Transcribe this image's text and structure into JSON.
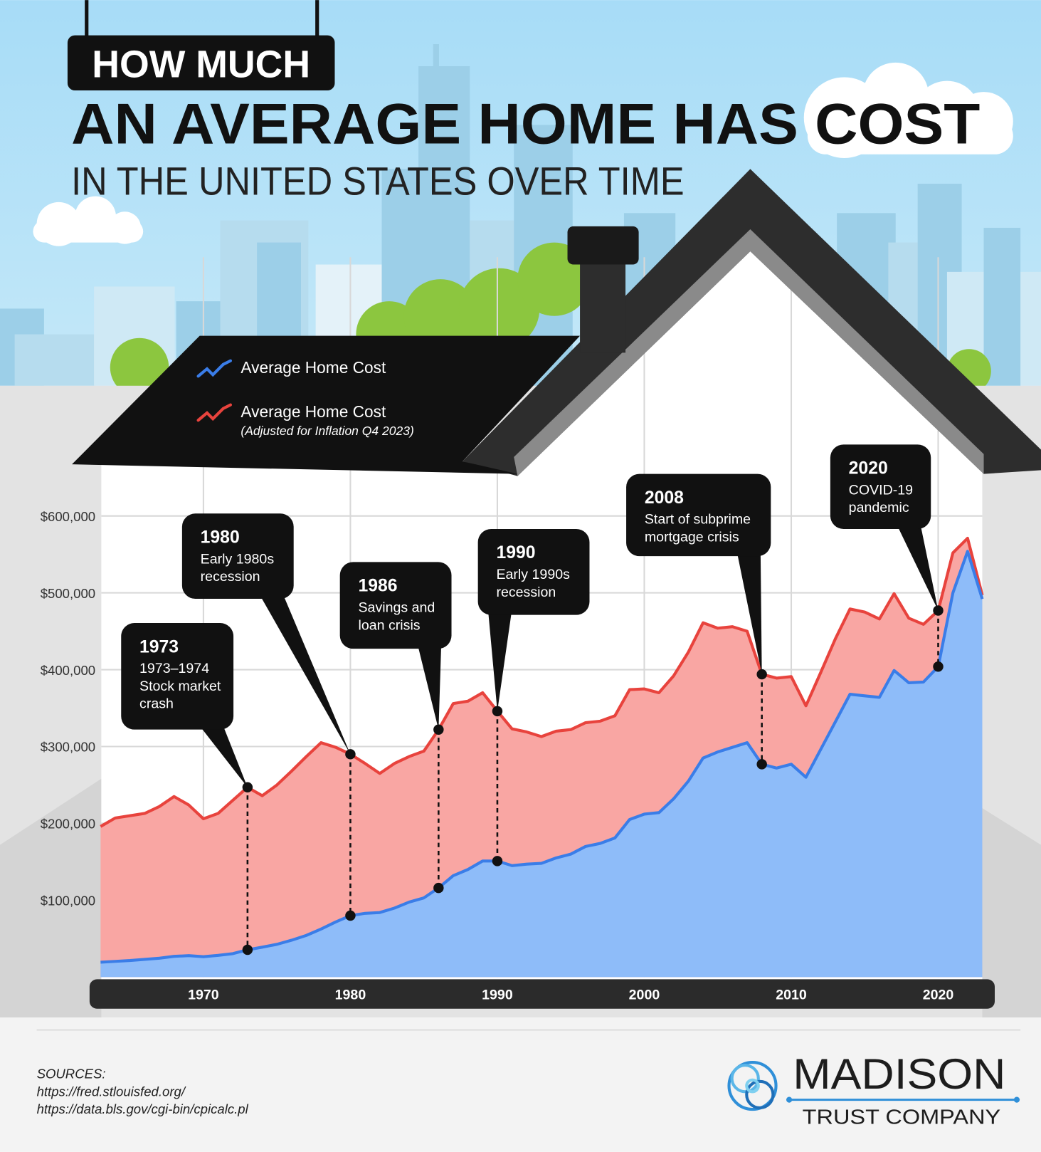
{
  "chart_data": {
    "type": "area",
    "kicker": "HOW MUCH",
    "title": "AN AVERAGE HOME HAS COST",
    "subtitle": "IN THE UNITED STATES OVER TIME",
    "x": [
      1963,
      1964,
      1965,
      1966,
      1967,
      1968,
      1969,
      1970,
      1971,
      1972,
      1973,
      1974,
      1975,
      1976,
      1977,
      1978,
      1979,
      1980,
      1981,
      1982,
      1983,
      1984,
      1985,
      1986,
      1987,
      1988,
      1989,
      1990,
      1991,
      1992,
      1993,
      1994,
      1995,
      1996,
      1997,
      1998,
      1999,
      2000,
      2001,
      2002,
      2003,
      2004,
      2005,
      2006,
      2007,
      2008,
      2009,
      2010,
      2011,
      2012,
      2013,
      2014,
      2015,
      2016,
      2017,
      2018,
      2019,
      2020,
      2021,
      2022,
      2023
    ],
    "series": [
      {
        "name": "Average Home Cost",
        "color": "#3a7de8",
        "fill": "#8ebcf9",
        "values": [
          19300,
          20500,
          21500,
          23000,
          24600,
          27000,
          27900,
          26600,
          28300,
          30500,
          35500,
          38900,
          42600,
          48000,
          54200,
          62500,
          71800,
          80000,
          83000,
          84000,
          89800,
          97600,
          103000,
          116000,
          132000,
          140000,
          151000,
          151000,
          145000,
          147000,
          148000,
          155000,
          160000,
          170000,
          174000,
          181000,
          205000,
          212000,
          214000,
          232000,
          255000,
          285000,
          293000,
          299000,
          305000,
          277000,
          272000,
          277000,
          260000,
          296000,
          332000,
          368000,
          366000,
          364000,
          399000,
          383000,
          384000,
          404000,
          500000,
          554000,
          492000
        ]
      },
      {
        "name": "Average Home Cost",
        "note": "(Adjusted for Inflation Q4 2023)",
        "color": "#e8433d",
        "fill": "#f9a6a3",
        "values": [
          196000,
          207000,
          210000,
          213000,
          222000,
          235000,
          224000,
          206000,
          213000,
          230000,
          247000,
          236000,
          250000,
          268000,
          287000,
          305000,
          299000,
          290000,
          278000,
          265000,
          278000,
          287000,
          294000,
          322000,
          356000,
          359000,
          370000,
          346000,
          323000,
          319000,
          313000,
          320000,
          322000,
          331000,
          333000,
          340000,
          374000,
          375000,
          370000,
          392000,
          423000,
          461000,
          454000,
          456000,
          450000,
          394000,
          389000,
          391000,
          353000,
          396000,
          440000,
          479000,
          475000,
          466000,
          499000,
          467000,
          459000,
          477000,
          552000,
          571000,
          497000
        ]
      }
    ],
    "xlim": [
      1963,
      2023
    ],
    "xticks": [
      1970,
      1980,
      1990,
      2000,
      2010,
      2020
    ],
    "ylim": [
      0,
      650000
    ],
    "yticks": [
      {
        "value": 100000,
        "label": "$100,000"
      },
      {
        "value": 200000,
        "label": "$200,000"
      },
      {
        "value": 300000,
        "label": "$300,000"
      },
      {
        "value": 400000,
        "label": "$400,000"
      },
      {
        "value": 500000,
        "label": "$500,000"
      },
      {
        "value": 600000,
        "label": "$600,000"
      }
    ],
    "grid": true,
    "annotations": [
      {
        "label": "1973",
        "text": [
          "1973–1974",
          "Stock market",
          "crash"
        ]
      },
      {
        "label": "1980",
        "text": [
          "Early 1980s",
          "recession"
        ]
      },
      {
        "label": "1986",
        "text": [
          "Savings and",
          "loan crisis"
        ]
      },
      {
        "label": "1990",
        "text": [
          "Early 1990s",
          "recession"
        ]
      },
      {
        "label": "2008",
        "text": [
          "Start of subprime",
          "mortgage crisis"
        ]
      },
      {
        "label": "2020",
        "text": [
          "COVID-19",
          "pandemic"
        ]
      }
    ]
  },
  "footer": {
    "sources_title": "SOURCES:",
    "sources": [
      "https://fred.stlouisfed.org/",
      "https://data.bls.gov/cgi-bin/cpicalc.pl"
    ],
    "brand": "MADISON",
    "brand_sub": "TRUST COMPANY"
  }
}
